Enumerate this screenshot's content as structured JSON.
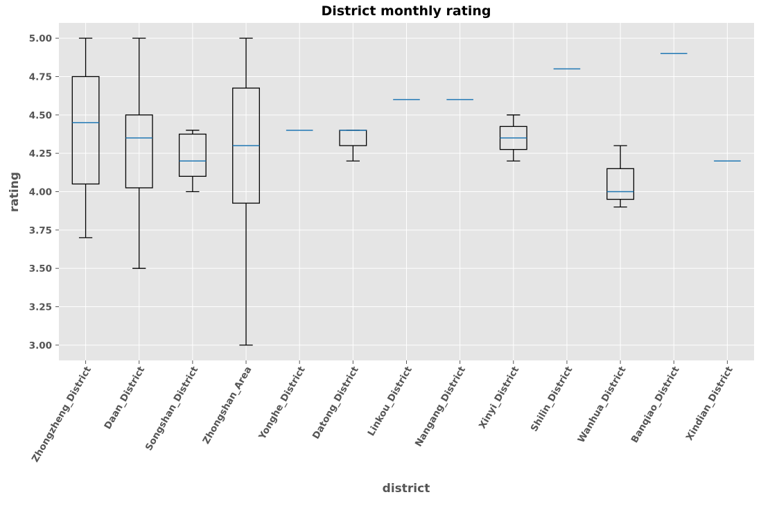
{
  "chart_data": {
    "type": "box",
    "title": "District monthly rating",
    "xlabel": "district",
    "ylabel": "rating",
    "ylim": [
      2.9,
      5.1
    ],
    "yticks": [
      "3.00",
      "3.25",
      "3.50",
      "3.75",
      "4.00",
      "4.25",
      "4.50",
      "4.75",
      "5.00"
    ],
    "ytick_values": [
      3.0,
      3.25,
      3.5,
      3.75,
      4.0,
      4.25,
      4.5,
      4.75,
      5.0
    ],
    "grid": true,
    "categories": [
      "Zhongzheng_District",
      "Daan_District",
      "Songshan_District",
      "Zhongshan_Area",
      "Yonghe_District",
      "Datong_District",
      "Linkou_District",
      "Nangang_District",
      "Xinyi_District",
      "Shilin_District",
      "Wanhua_District",
      "Banqiao_District",
      "Xindian_District"
    ],
    "boxes": [
      {
        "whislo": 3.7,
        "q1": 4.05,
        "med": 4.45,
        "q3": 4.75,
        "whishi": 5.0
      },
      {
        "whislo": 3.5,
        "q1": 4.025,
        "med": 4.35,
        "q3": 4.5,
        "whishi": 5.0
      },
      {
        "whislo": 4.0,
        "q1": 4.1,
        "med": 4.2,
        "q3": 4.375,
        "whishi": 4.4
      },
      {
        "whislo": 3.0,
        "q1": 3.925,
        "med": 4.3,
        "q3": 4.675,
        "whishi": 5.0
      },
      {
        "whislo": 4.4,
        "q1": 4.4,
        "med": 4.4,
        "q3": 4.4,
        "whishi": 4.4
      },
      {
        "whislo": 4.2,
        "q1": 4.3,
        "med": 4.4,
        "q3": 4.4,
        "whishi": 4.4
      },
      {
        "whislo": 4.6,
        "q1": 4.6,
        "med": 4.6,
        "q3": 4.6,
        "whishi": 4.6
      },
      {
        "whislo": 4.6,
        "q1": 4.6,
        "med": 4.6,
        "q3": 4.6,
        "whishi": 4.6
      },
      {
        "whislo": 4.2,
        "q1": 4.275,
        "med": 4.35,
        "q3": 4.425,
        "whishi": 4.5
      },
      {
        "whislo": 4.8,
        "q1": 4.8,
        "med": 4.8,
        "q3": 4.8,
        "whishi": 4.8
      },
      {
        "whislo": 3.9,
        "q1": 3.95,
        "med": 4.0,
        "q3": 4.15,
        "whishi": 4.3
      },
      {
        "whislo": 4.9,
        "q1": 4.9,
        "med": 4.9,
        "q3": 4.9,
        "whishi": 4.9
      },
      {
        "whislo": 4.2,
        "q1": 4.2,
        "med": 4.2,
        "q3": 4.2,
        "whishi": 4.2
      }
    ],
    "colors": {
      "plot_background": "#e5e5e5",
      "grid": "#ffffff",
      "box": "#000000",
      "median": "#1f77b4",
      "tick_label": "#555555"
    }
  }
}
